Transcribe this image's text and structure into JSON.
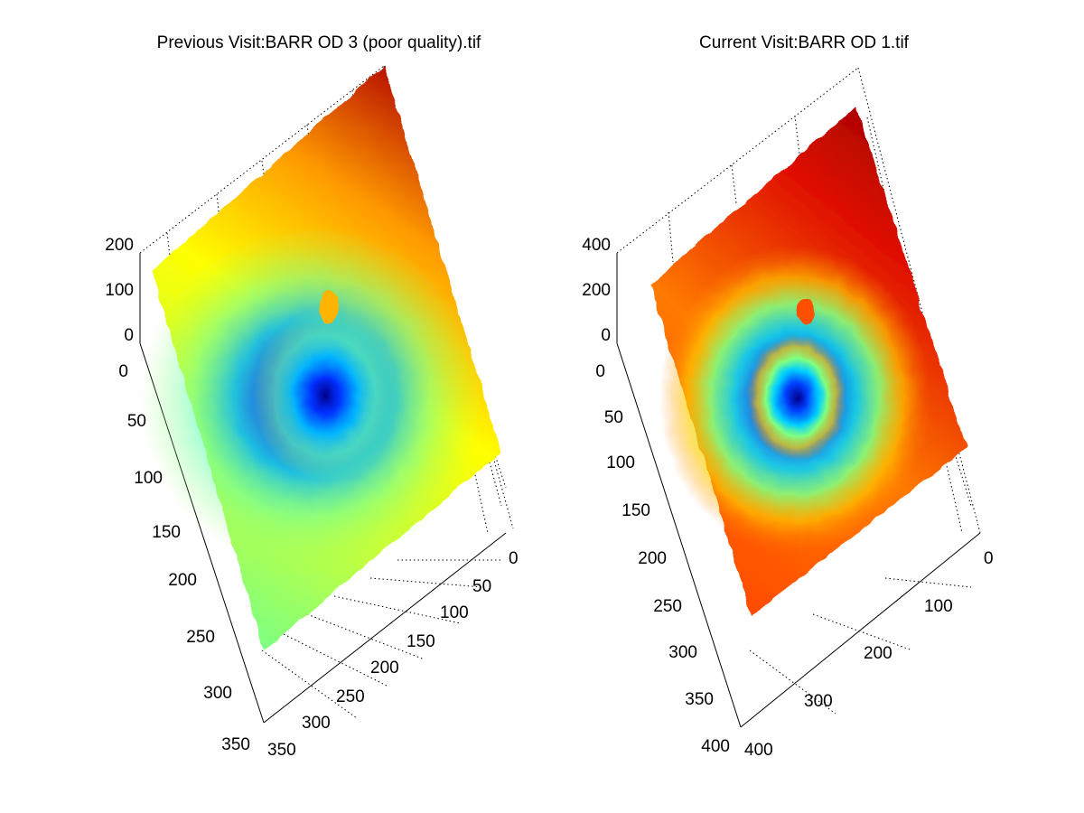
{
  "chart_data": [
    {
      "type": "surface",
      "title": "Previous Visit:BARR OD 3 (poor quality).tif",
      "colormap": "jet",
      "x_ticks": [
        "0",
        "50",
        "100",
        "150",
        "200",
        "250",
        "300",
        "350"
      ],
      "y_ticks": [
        "0",
        "50",
        "100",
        "150",
        "200",
        "250",
        "300",
        "350"
      ],
      "z_ticks": [
        "0",
        "100",
        "200"
      ],
      "xlim": [
        0,
        350
      ],
      "ylim": [
        0,
        350
      ],
      "zlim": [
        0,
        200
      ],
      "grid": true,
      "surface_summary": "Retinal thickness surface with a deep central pit (blue) rising to yellow/orange edges and red at the far corner",
      "surface_peak_color": "#a00000",
      "surface_pit_color": "#00008c"
    },
    {
      "type": "surface",
      "title": "Current Visit:BARR OD 1.tif",
      "colormap": "jet",
      "x_ticks": [
        "0",
        "100",
        "200",
        "300",
        "400"
      ],
      "y_ticks": [
        "0",
        "50",
        "100",
        "150",
        "200",
        "250",
        "300",
        "350",
        "400"
      ],
      "z_ticks": [
        "0",
        "200",
        "400"
      ],
      "xlim": [
        0,
        400
      ],
      "ylim": [
        0,
        400
      ],
      "zlim": [
        0,
        400
      ],
      "grid": true,
      "surface_summary": "Retinal thickness surface with central blue pit surrounded by cyan/yellow ring and orange-red periphery",
      "surface_peak_color": "#a00000",
      "surface_pit_color": "#00008c"
    }
  ]
}
